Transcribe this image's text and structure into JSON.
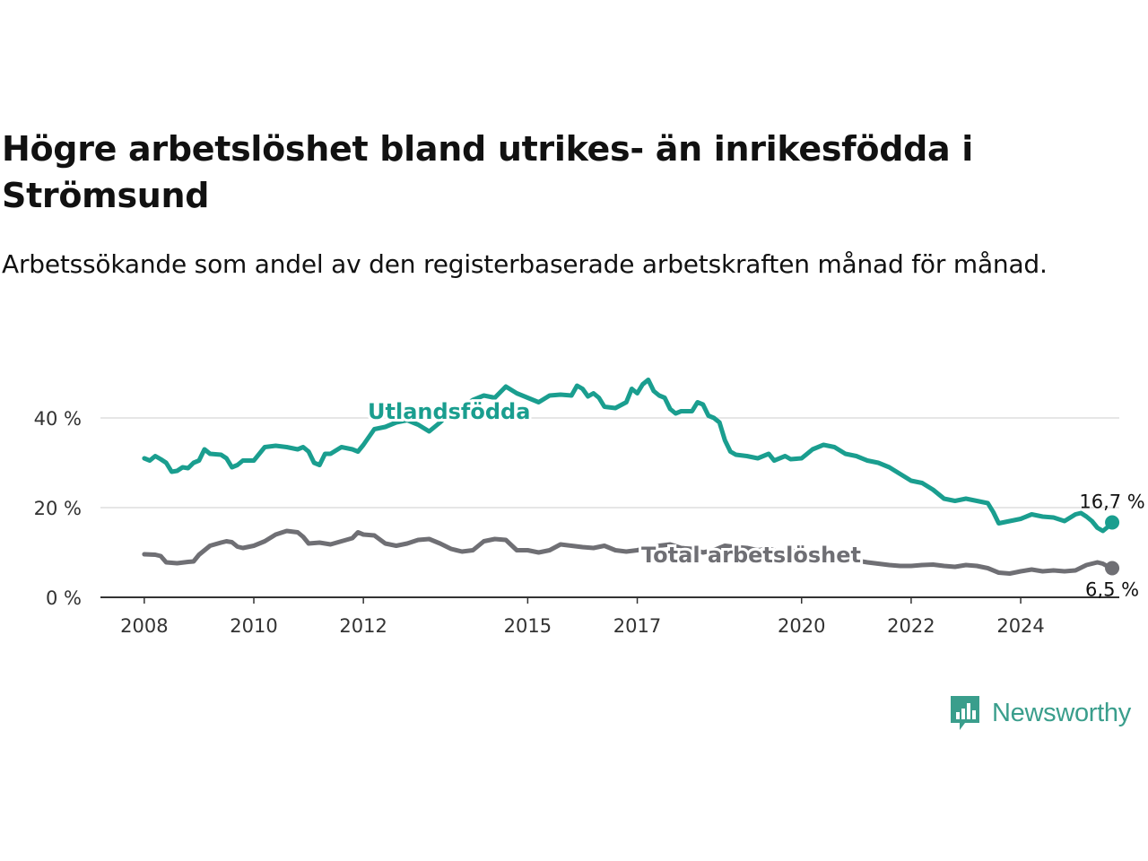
{
  "title": "Högre arbetslöshet bland utrikes- än inrikesfödda i Strömsund",
  "subtitle": "Arbetssökande som andel av den registerbaserade arbetskraften månad för månad.",
  "brand": {
    "name": "Newsworthy",
    "color": "#3a9e8c",
    "icon": "newsworthy-bar-chart-logo-icon"
  },
  "colors": {
    "foreign_born": "#1a9e8f",
    "total": "#6f6f74",
    "grid": "#dddddd",
    "axis": "#333333"
  },
  "chart_data": {
    "type": "line",
    "ylim": [
      0,
      50
    ],
    "y_ticks": [
      {
        "value": 0,
        "label": "0 %"
      },
      {
        "value": 20,
        "label": "20 %"
      },
      {
        "value": 40,
        "label": "40 %"
      }
    ],
    "x_ticks": [
      {
        "value": 2008.0,
        "label": "2008"
      },
      {
        "value": 2010.0,
        "label": "2010"
      },
      {
        "value": 2012.0,
        "label": "2012"
      },
      {
        "value": 2015.0,
        "label": "2015"
      },
      {
        "value": 2017.0,
        "label": "2017"
      },
      {
        "value": 2020.0,
        "label": "2020"
      },
      {
        "value": 2022.0,
        "label": "2022"
      },
      {
        "value": 2024.0,
        "label": "2024"
      }
    ],
    "xlim": [
      2007.2,
      2025.8
    ],
    "grid": true,
    "series": [
      {
        "name": "Utlandsfödda",
        "end_label": "16,7 %",
        "points": [
          [
            2008.0,
            31.0
          ],
          [
            2008.1,
            30.5
          ],
          [
            2008.2,
            31.5
          ],
          [
            2008.3,
            30.8
          ],
          [
            2008.4,
            30.0
          ],
          [
            2008.5,
            28.0
          ],
          [
            2008.6,
            28.2
          ],
          [
            2008.7,
            29.0
          ],
          [
            2008.8,
            28.8
          ],
          [
            2008.9,
            30.0
          ],
          [
            2009.0,
            30.5
          ],
          [
            2009.1,
            33.0
          ],
          [
            2009.2,
            32.0
          ],
          [
            2009.4,
            31.8
          ],
          [
            2009.5,
            31.0
          ],
          [
            2009.6,
            29.0
          ],
          [
            2009.7,
            29.5
          ],
          [
            2009.8,
            30.5
          ],
          [
            2010.0,
            30.5
          ],
          [
            2010.2,
            33.5
          ],
          [
            2010.4,
            33.8
          ],
          [
            2010.6,
            33.5
          ],
          [
            2010.8,
            33.0
          ],
          [
            2010.9,
            33.5
          ],
          [
            2011.0,
            32.5
          ],
          [
            2011.1,
            30.0
          ],
          [
            2011.2,
            29.5
          ],
          [
            2011.3,
            32.0
          ],
          [
            2011.4,
            32.0
          ],
          [
            2011.6,
            33.5
          ],
          [
            2011.8,
            33.0
          ],
          [
            2011.9,
            32.5
          ],
          [
            2012.0,
            34.0
          ],
          [
            2012.2,
            37.5
          ],
          [
            2012.4,
            38.0
          ],
          [
            2012.6,
            39.0
          ],
          [
            2012.8,
            39.5
          ],
          [
            2013.0,
            38.5
          ],
          [
            2013.2,
            37.0
          ],
          [
            2013.4,
            39.0
          ],
          [
            2013.6,
            41.5
          ],
          [
            2013.8,
            42.5
          ],
          [
            2014.0,
            44.0
          ],
          [
            2014.2,
            45.0
          ],
          [
            2014.4,
            44.5
          ],
          [
            2014.6,
            47.0
          ],
          [
            2014.8,
            45.5
          ],
          [
            2015.0,
            44.5
          ],
          [
            2015.2,
            43.5
          ],
          [
            2015.4,
            45.0
          ],
          [
            2015.6,
            45.2
          ],
          [
            2015.8,
            45.0
          ],
          [
            2015.9,
            47.2
          ],
          [
            2016.0,
            46.5
          ],
          [
            2016.1,
            44.8
          ],
          [
            2016.2,
            45.5
          ],
          [
            2016.3,
            44.5
          ],
          [
            2016.4,
            42.5
          ],
          [
            2016.6,
            42.2
          ],
          [
            2016.8,
            43.5
          ],
          [
            2016.9,
            46.5
          ],
          [
            2017.0,
            45.5
          ],
          [
            2017.1,
            47.5
          ],
          [
            2017.2,
            48.5
          ],
          [
            2017.3,
            46.0
          ],
          [
            2017.4,
            45.0
          ],
          [
            2017.5,
            44.5
          ],
          [
            2017.6,
            42.0
          ],
          [
            2017.7,
            41.0
          ],
          [
            2017.8,
            41.5
          ],
          [
            2018.0,
            41.5
          ],
          [
            2018.1,
            43.5
          ],
          [
            2018.2,
            43.0
          ],
          [
            2018.3,
            40.5
          ],
          [
            2018.4,
            40.0
          ],
          [
            2018.5,
            39.0
          ],
          [
            2018.6,
            35.0
          ],
          [
            2018.7,
            32.5
          ],
          [
            2018.8,
            31.8
          ],
          [
            2019.0,
            31.5
          ],
          [
            2019.2,
            31.0
          ],
          [
            2019.4,
            32.0
          ],
          [
            2019.5,
            30.5
          ],
          [
            2019.7,
            31.5
          ],
          [
            2019.8,
            30.8
          ],
          [
            2020.0,
            31.0
          ],
          [
            2020.2,
            33.0
          ],
          [
            2020.4,
            34.0
          ],
          [
            2020.6,
            33.5
          ],
          [
            2020.8,
            32.0
          ],
          [
            2021.0,
            31.5
          ],
          [
            2021.2,
            30.5
          ],
          [
            2021.4,
            30.0
          ],
          [
            2021.6,
            29.0
          ],
          [
            2021.8,
            27.5
          ],
          [
            2022.0,
            26.0
          ],
          [
            2022.2,
            25.5
          ],
          [
            2022.4,
            24.0
          ],
          [
            2022.6,
            22.0
          ],
          [
            2022.8,
            21.5
          ],
          [
            2023.0,
            22.0
          ],
          [
            2023.2,
            21.5
          ],
          [
            2023.4,
            21.0
          ],
          [
            2023.5,
            19.0
          ],
          [
            2023.6,
            16.5
          ],
          [
            2023.8,
            17.0
          ],
          [
            2024.0,
            17.5
          ],
          [
            2024.2,
            18.5
          ],
          [
            2024.4,
            18.0
          ],
          [
            2024.6,
            17.8
          ],
          [
            2024.8,
            17.0
          ],
          [
            2025.0,
            18.5
          ],
          [
            2025.1,
            18.8
          ],
          [
            2025.2,
            18.0
          ],
          [
            2025.3,
            17.0
          ],
          [
            2025.4,
            15.5
          ],
          [
            2025.5,
            14.8
          ],
          [
            2025.6,
            15.8
          ],
          [
            2025.67,
            16.7
          ]
        ]
      },
      {
        "name": "Total arbetslöshet",
        "end_label": "6,5 %",
        "points": [
          [
            2008.0,
            9.6
          ],
          [
            2008.2,
            9.5
          ],
          [
            2008.3,
            9.2
          ],
          [
            2008.4,
            7.8
          ],
          [
            2008.6,
            7.6
          ],
          [
            2008.8,
            7.9
          ],
          [
            2008.9,
            8.0
          ],
          [
            2009.0,
            9.5
          ],
          [
            2009.2,
            11.5
          ],
          [
            2009.4,
            12.2
          ],
          [
            2009.5,
            12.5
          ],
          [
            2009.6,
            12.3
          ],
          [
            2009.7,
            11.3
          ],
          [
            2009.8,
            11.0
          ],
          [
            2010.0,
            11.5
          ],
          [
            2010.2,
            12.5
          ],
          [
            2010.4,
            14.0
          ],
          [
            2010.6,
            14.8
          ],
          [
            2010.8,
            14.5
          ],
          [
            2010.9,
            13.5
          ],
          [
            2011.0,
            12.0
          ],
          [
            2011.2,
            12.2
          ],
          [
            2011.4,
            11.8
          ],
          [
            2011.6,
            12.5
          ],
          [
            2011.8,
            13.2
          ],
          [
            2011.9,
            14.5
          ],
          [
            2012.0,
            14.0
          ],
          [
            2012.2,
            13.8
          ],
          [
            2012.4,
            12.0
          ],
          [
            2012.6,
            11.5
          ],
          [
            2012.8,
            12.0
          ],
          [
            2013.0,
            12.8
          ],
          [
            2013.2,
            13.0
          ],
          [
            2013.4,
            12.0
          ],
          [
            2013.6,
            10.8
          ],
          [
            2013.8,
            10.2
          ],
          [
            2014.0,
            10.5
          ],
          [
            2014.2,
            12.5
          ],
          [
            2014.4,
            13.0
          ],
          [
            2014.6,
            12.8
          ],
          [
            2014.8,
            10.5
          ],
          [
            2015.0,
            10.5
          ],
          [
            2015.2,
            10.0
          ],
          [
            2015.4,
            10.5
          ],
          [
            2015.6,
            11.8
          ],
          [
            2015.8,
            11.5
          ],
          [
            2016.0,
            11.2
          ],
          [
            2016.2,
            11.0
          ],
          [
            2016.4,
            11.5
          ],
          [
            2016.6,
            10.5
          ],
          [
            2016.8,
            10.2
          ],
          [
            2017.0,
            10.5
          ],
          [
            2017.2,
            11.0
          ],
          [
            2017.4,
            11.5
          ],
          [
            2017.6,
            11.8
          ],
          [
            2017.8,
            11.0
          ],
          [
            2018.0,
            10.8
          ],
          [
            2018.2,
            10.0
          ],
          [
            2018.4,
            10.5
          ],
          [
            2018.6,
            11.5
          ],
          [
            2018.8,
            11.2
          ],
          [
            2019.0,
            11.0
          ],
          [
            2019.2,
            10.5
          ],
          [
            2019.4,
            10.8
          ],
          [
            2019.6,
            10.2
          ],
          [
            2019.8,
            10.5
          ],
          [
            2020.0,
            9.8
          ],
          [
            2020.2,
            9.5
          ],
          [
            2020.4,
            9.2
          ],
          [
            2020.6,
            8.8
          ],
          [
            2020.8,
            8.5
          ],
          [
            2021.0,
            8.2
          ],
          [
            2021.2,
            7.8
          ],
          [
            2021.4,
            7.5
          ],
          [
            2021.6,
            7.2
          ],
          [
            2021.8,
            7.0
          ],
          [
            2022.0,
            7.0
          ],
          [
            2022.2,
            7.2
          ],
          [
            2022.4,
            7.3
          ],
          [
            2022.6,
            7.0
          ],
          [
            2022.8,
            6.8
          ],
          [
            2023.0,
            7.2
          ],
          [
            2023.2,
            7.0
          ],
          [
            2023.4,
            6.5
          ],
          [
            2023.6,
            5.5
          ],
          [
            2023.8,
            5.3
          ],
          [
            2024.0,
            5.8
          ],
          [
            2024.2,
            6.2
          ],
          [
            2024.4,
            5.8
          ],
          [
            2024.6,
            6.0
          ],
          [
            2024.8,
            5.8
          ],
          [
            2025.0,
            6.0
          ],
          [
            2025.2,
            7.2
          ],
          [
            2025.4,
            7.8
          ],
          [
            2025.5,
            7.5
          ],
          [
            2025.6,
            6.8
          ],
          [
            2025.67,
            6.5
          ]
        ]
      }
    ]
  }
}
